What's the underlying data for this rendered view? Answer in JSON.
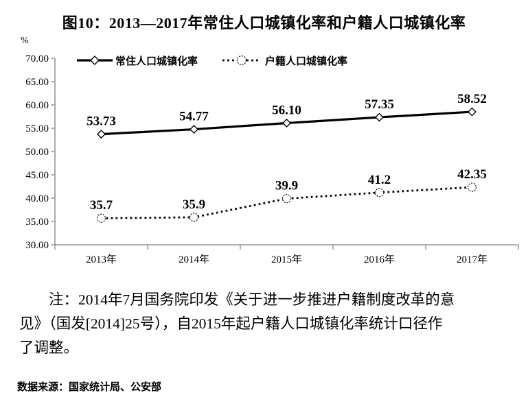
{
  "page": {
    "title": "图10：2013—2017年常住人口城镇化率和户籍人口城镇化率",
    "note_lines": [
      "注：2014年7月国务院印发《关于进一步推进户籍制度改革的意",
      "见》（国发[2014]25号），自2015年起户籍人口城镇化率统计口径作",
      "了调整。"
    ],
    "source": "数据来源：国家统计局、公安部"
  },
  "chart_data": {
    "type": "line",
    "title": "图10：2013—2017年常住人口城镇化率和户籍人口城镇化率",
    "categories": [
      "2013年",
      "2014年",
      "2015年",
      "2016年",
      "2017年"
    ],
    "series": [
      {
        "name": "常住人口城镇化率",
        "line_style": "solid",
        "marker": "diamond",
        "values": [
          53.73,
          54.77,
          56.1,
          57.35,
          58.52
        ],
        "value_labels": [
          "53.73",
          "54.77",
          "56.10",
          "57.35",
          "58.52"
        ]
      },
      {
        "name": "户籍人口城镇化率",
        "line_style": "dotted",
        "marker": "circle",
        "values": [
          35.7,
          35.9,
          39.9,
          41.2,
          42.35
        ],
        "value_labels": [
          "35.7",
          "35.9",
          "39.9",
          "41.2",
          "42.35"
        ]
      }
    ],
    "xlabel": "",
    "ylabel": "%",
    "ylim": [
      30,
      70
    ],
    "ytick_step": 5,
    "ytick_labels": [
      "30.00",
      "35.00",
      "40.00",
      "45.00",
      "50.00",
      "55.00",
      "60.00",
      "65.00",
      "70.00"
    ],
    "grid": false,
    "legend_position": "top",
    "colors": {
      "series": "#000000",
      "axis": "#808080",
      "text": "#000000",
      "background": "#ffffff"
    }
  }
}
